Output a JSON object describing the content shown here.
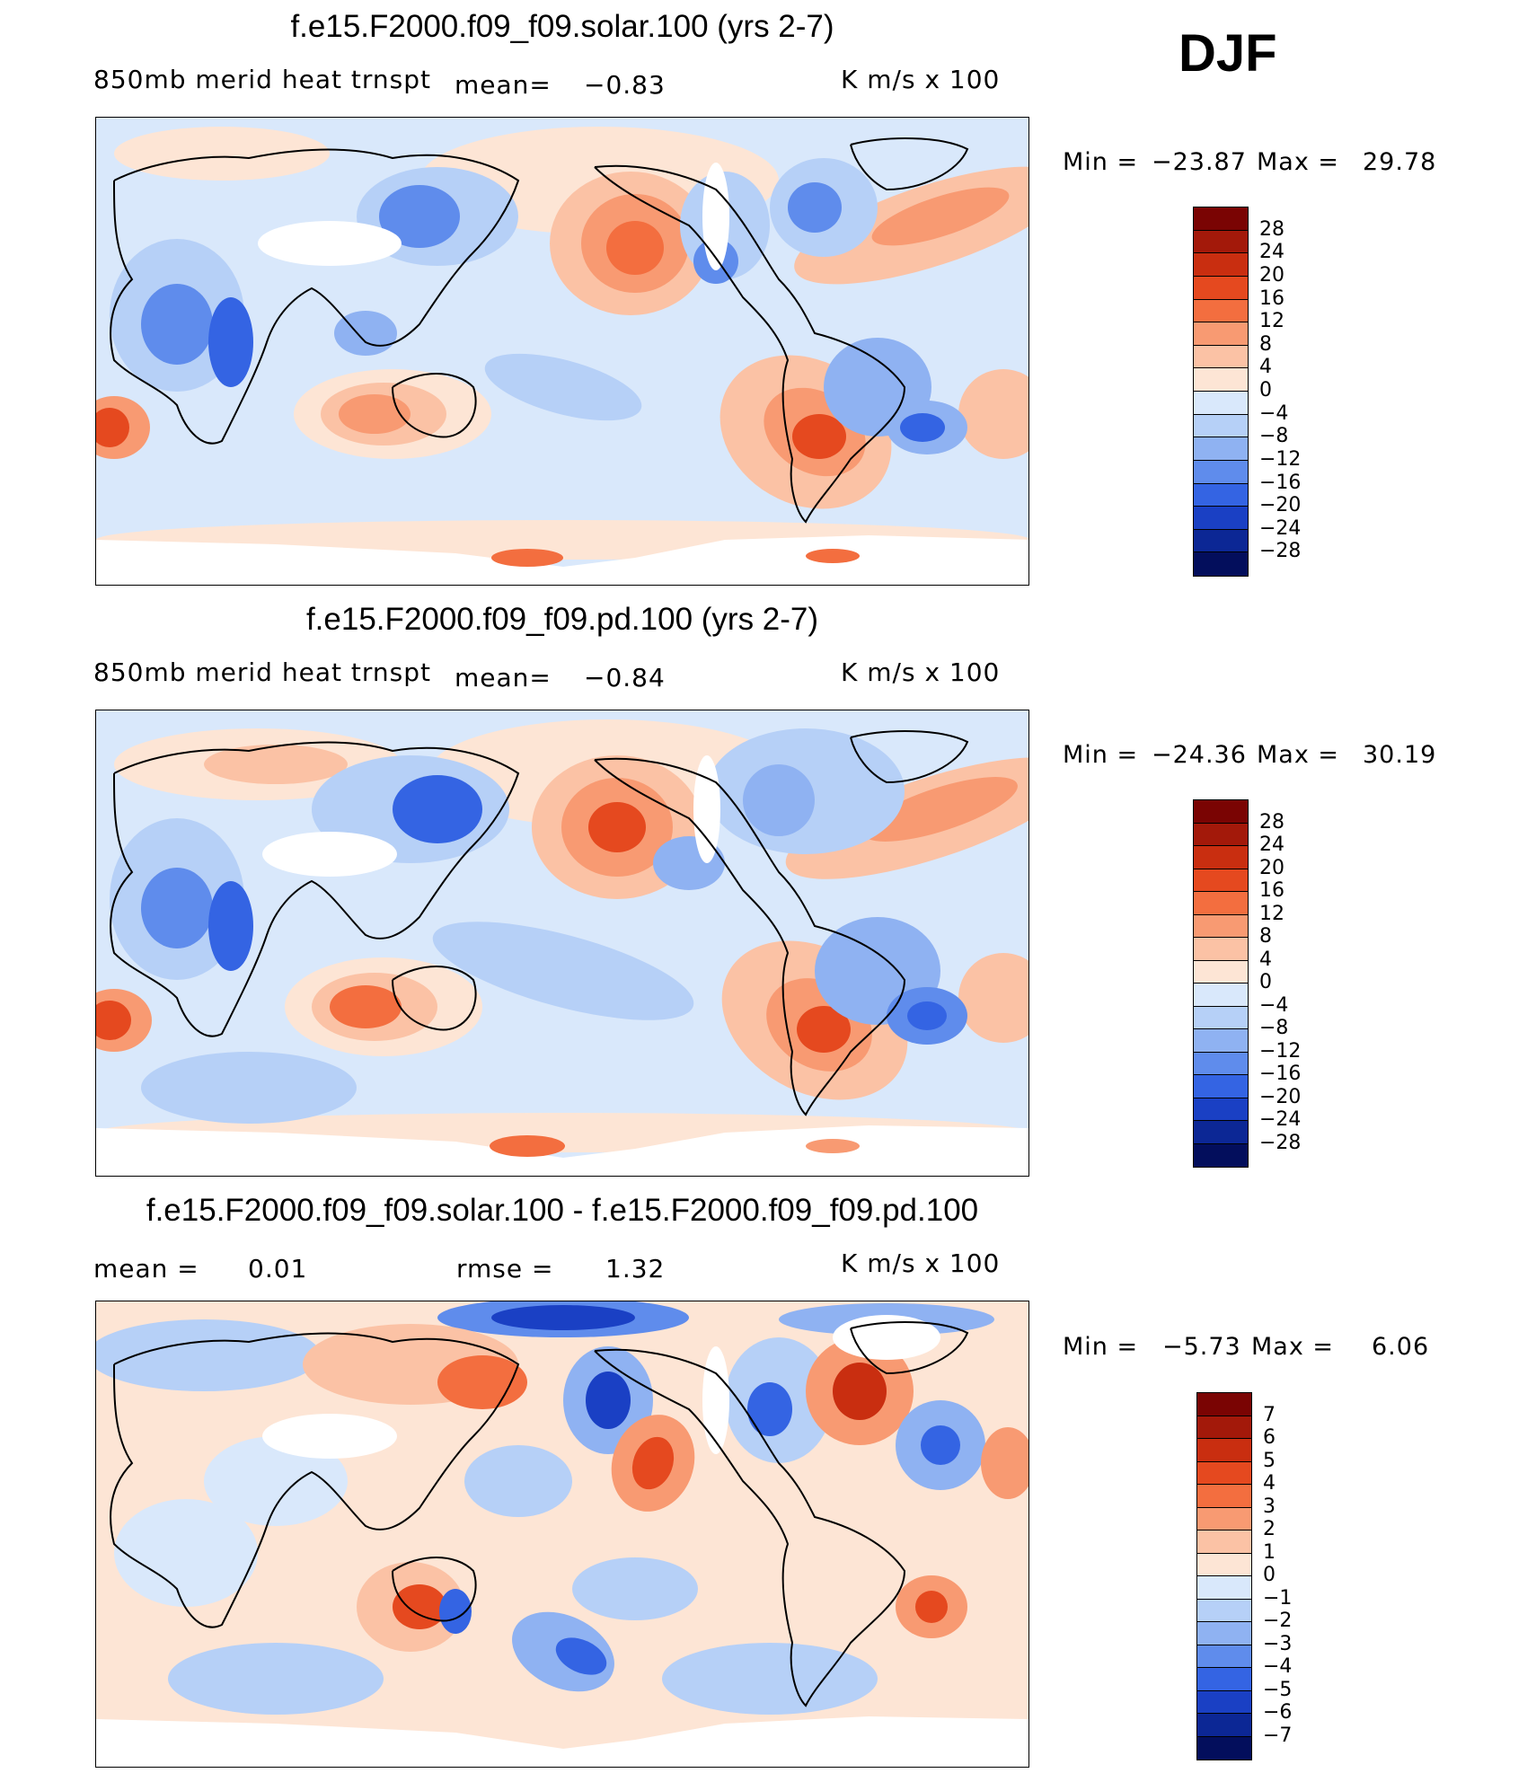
{
  "season": "DJF",
  "panels": [
    {
      "title": "f.e15.F2000.f09_f09.solar.100 (yrs 2-7)",
      "left_text": "850mb merid heat trnspt",
      "mean_text": "mean=",
      "mean_value": "−0.83",
      "units": "K m/s x 100",
      "min_label": "Min =",
      "min_value": "−23.87",
      "max_label": "Max =",
      "max_value": "29.78",
      "colorbar": {
        "labels": [
          "28",
          "24",
          "20",
          "16",
          "12",
          "8",
          "4",
          "0",
          "−4",
          "−8",
          "−12",
          "−16",
          "−20",
          "−24",
          "−28"
        ],
        "colors": [
          "#7a0403",
          "#a3190a",
          "#c92e10",
          "#e5491f",
          "#f36e3f",
          "#f89a72",
          "#fbc2a5",
          "#fde5d5",
          "#d9e8fb",
          "#b6d0f7",
          "#8fb2f2",
          "#5f8cec",
          "#3464e3",
          "#1a40c4",
          "#0c2795",
          "#030e5c"
        ]
      }
    },
    {
      "title": "f.e15.F2000.f09_f09.pd.100 (yrs 2-7)",
      "left_text": "850mb merid heat trnspt",
      "mean_text": "mean=",
      "mean_value": "−0.84",
      "units": "K m/s x 100",
      "min_label": "Min =",
      "min_value": "−24.36",
      "max_label": "Max =",
      "max_value": "30.19",
      "colorbar": {
        "labels": [
          "28",
          "24",
          "20",
          "16",
          "12",
          "8",
          "4",
          "0",
          "−4",
          "−8",
          "−12",
          "−16",
          "−20",
          "−24",
          "−28"
        ],
        "colors": [
          "#7a0403",
          "#a3190a",
          "#c92e10",
          "#e5491f",
          "#f36e3f",
          "#f89a72",
          "#fbc2a5",
          "#fde5d5",
          "#d9e8fb",
          "#b6d0f7",
          "#8fb2f2",
          "#5f8cec",
          "#3464e3",
          "#1a40c4",
          "#0c2795",
          "#030e5c"
        ]
      }
    },
    {
      "title": "f.e15.F2000.f09_f09.solar.100 - f.e15.F2000.f09_f09.pd.100",
      "left_text": "mean =",
      "mean_text": "",
      "mean_value": "0.01",
      "rmse_text": "rmse =",
      "rmse_value": "1.32",
      "units": "K m/s x 100",
      "min_label": "Min =",
      "min_value": "−5.73",
      "max_label": "Max =",
      "max_value": "6.06",
      "colorbar": {
        "labels": [
          "7",
          "6",
          "5",
          "4",
          "3",
          "2",
          "1",
          "0",
          "−1",
          "−2",
          "−3",
          "−4",
          "−5",
          "−6",
          "−7"
        ],
        "colors": [
          "#7a0403",
          "#a3190a",
          "#c92e10",
          "#e5491f",
          "#f36e3f",
          "#f89a72",
          "#fbc2a5",
          "#fde5d5",
          "#d9e8fb",
          "#b6d0f7",
          "#8fb2f2",
          "#5f8cec",
          "#3464e3",
          "#1a40c4",
          "#0c2795",
          "#030e5c"
        ]
      }
    }
  ]
}
